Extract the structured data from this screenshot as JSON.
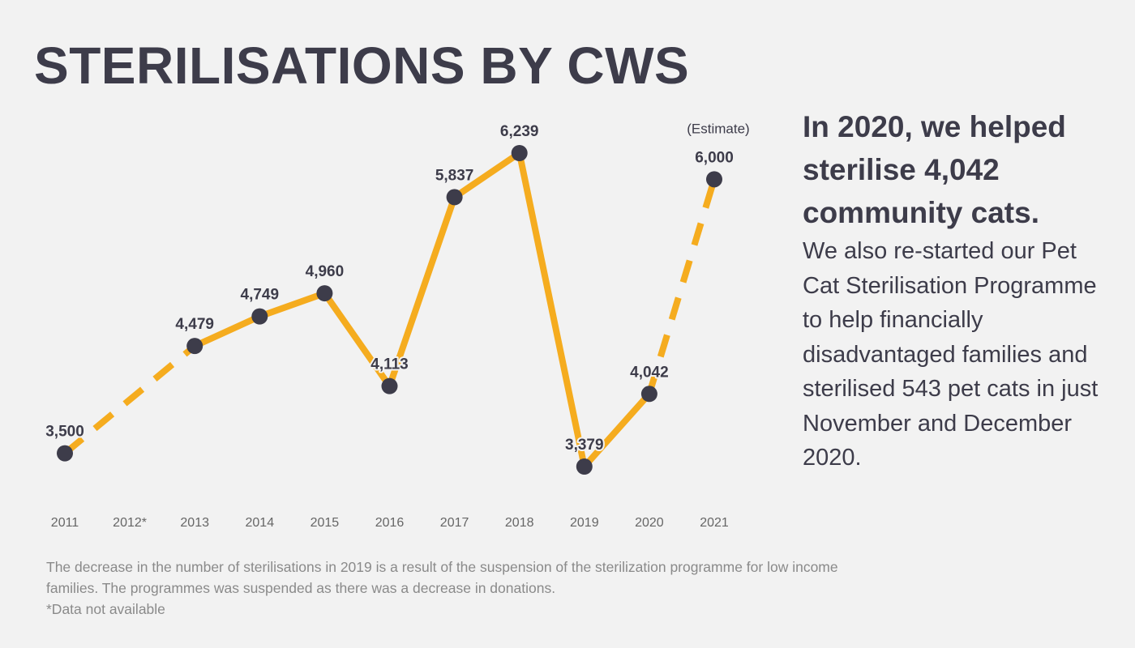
{
  "title": "STERILISATIONS BY CWS",
  "side_panel": {
    "headline": "In 2020, we helped sterilise 4,042 community cats.",
    "body": "We also re-started our Pet Cat Sterilisation Programme to help financially disadvantaged families and sterilised 543 pet cats in just November and December 2020."
  },
  "footnote": {
    "line1": "The decrease in the number of sterilisations in 2019 is a result of the suspension of the sterilization programme for low income families. The programmes was suspended as there was a decrease in donations.",
    "line2": "*Data not available"
  },
  "colors": {
    "line": "#f5ac1f",
    "point": "#3d3c4a",
    "text": "#3d3c4a",
    "tick": "#666666",
    "background": "#f2f2f2"
  },
  "chart_data": {
    "type": "line",
    "title": "STERILISATIONS BY CWS",
    "xlabel": "",
    "ylabel": "",
    "categories": [
      "2011",
      "2012*",
      "2013",
      "2014",
      "2015",
      "2016",
      "2017",
      "2018",
      "2019",
      "2020",
      "2021"
    ],
    "values": [
      3500,
      null,
      4479,
      4749,
      4960,
      4113,
      5837,
      6239,
      3379,
      4042,
      6000
    ],
    "labels": [
      "3,500",
      "",
      "4,479",
      "4,749",
      "4,960",
      "4,113",
      "5,837",
      "6,239",
      "3,379",
      "4,042",
      "6,000"
    ],
    "dashed_segments": [
      [
        0,
        2
      ],
      [
        9,
        10
      ]
    ],
    "annotations": [
      {
        "category": "2021",
        "text": "(Estimate)"
      }
    ],
    "grid": false,
    "legend": "none"
  }
}
